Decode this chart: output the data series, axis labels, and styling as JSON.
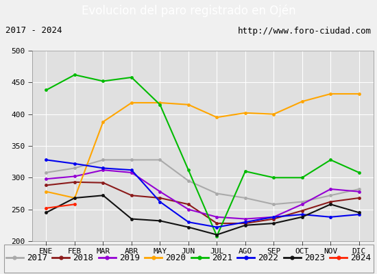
{
  "title": "Evolucion del paro registrado en Ojén",
  "subtitle_left": "2017 - 2024",
  "subtitle_right": "http://www.foro-ciudad.com",
  "months": [
    "ENE",
    "FEB",
    "MAR",
    "ABR",
    "MAY",
    "JUN",
    "JUL",
    "AGO",
    "SEP",
    "OCT",
    "NOV",
    "DIC"
  ],
  "ylim": [
    200,
    500
  ],
  "yticks": [
    200,
    250,
    300,
    350,
    400,
    450,
    500
  ],
  "series": {
    "2017": {
      "color": "#aaaaaa",
      "data": [
        308,
        315,
        328,
        328,
        328,
        295,
        275,
        268,
        258,
        262,
        272,
        282
      ]
    },
    "2018": {
      "color": "#8b1a1a",
      "data": [
        288,
        293,
        292,
        272,
        268,
        258,
        228,
        228,
        235,
        248,
        262,
        268
      ]
    },
    "2019": {
      "color": "#9400d3",
      "data": [
        298,
        302,
        312,
        308,
        278,
        250,
        238,
        235,
        238,
        258,
        282,
        278
      ]
    },
    "2020": {
      "color": "#ffa500",
      "data": [
        278,
        268,
        388,
        418,
        418,
        415,
        395,
        402,
        400,
        420,
        432,
        432
      ]
    },
    "2021": {
      "color": "#00bb00",
      "data": [
        438,
        462,
        452,
        458,
        415,
        312,
        208,
        310,
        300,
        300,
        328,
        308
      ]
    },
    "2022": {
      "color": "#0000ee",
      "data": [
        328,
        322,
        315,
        312,
        262,
        230,
        222,
        230,
        238,
        242,
        238,
        242
      ]
    },
    "2023": {
      "color": "#111111",
      "data": [
        245,
        268,
        272,
        235,
        232,
        222,
        210,
        225,
        228,
        238,
        258,
        245
      ]
    },
    "2024": {
      "color": "#ff2200",
      "data": [
        252,
        258,
        null,
        null,
        null,
        null,
        null,
        null,
        null,
        null,
        null,
        null
      ]
    }
  },
  "background_color": "#f0f0f0",
  "plot_bg_color": "#e0e0e0",
  "title_bg_color": "#4a86c8",
  "title_color": "white",
  "grid_color": "white",
  "title_fontsize": 12,
  "subtitle_fontsize": 9,
  "tick_fontsize": 8,
  "legend_fontsize": 9
}
